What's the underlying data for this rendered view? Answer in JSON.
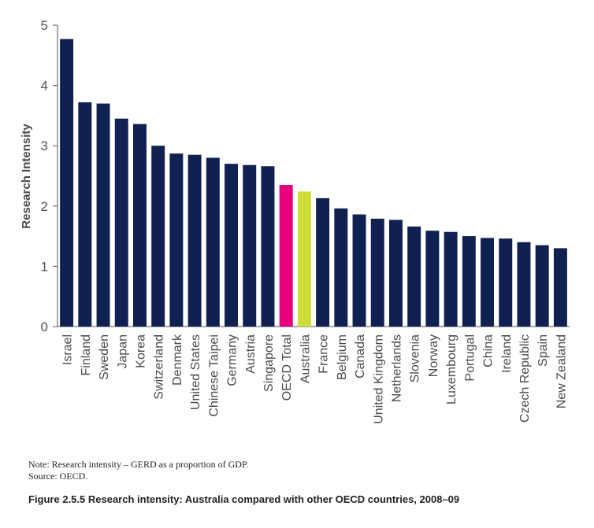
{
  "chart_data": {
    "type": "bar",
    "ylabel": "Research Intensity",
    "ylim": [
      0,
      5
    ],
    "yticks": [
      "0",
      "1",
      "2",
      "3",
      "4",
      "5"
    ],
    "grid": false,
    "legend": "none",
    "categories": [
      "Israel",
      "Finland",
      "Sweden",
      "Japan",
      "Korea",
      "Switzerland",
      "Denmark",
      "United States",
      "Chinese Taipei",
      "Germany",
      "Austria",
      "Singapore",
      "OECD Total",
      "Australia",
      "France",
      "Belgium",
      "Canada",
      "United Kingdom",
      "Netherlands",
      "Slovenia",
      "Norway",
      "Luxembourg",
      "Portugal",
      "China",
      "Ireland",
      "Czech Republic",
      "Spain",
      "New Zealand"
    ],
    "values": [
      4.77,
      3.72,
      3.7,
      3.45,
      3.36,
      3.0,
      2.87,
      2.85,
      2.8,
      2.7,
      2.68,
      2.66,
      2.35,
      2.24,
      2.13,
      1.96,
      1.86,
      1.79,
      1.77,
      1.66,
      1.59,
      1.57,
      1.5,
      1.47,
      1.46,
      1.4,
      1.35,
      1.3
    ],
    "colors": {
      "default": "#0f2051",
      "OECD Total": "#e6007e",
      "Australia": "#cfdd3a"
    }
  },
  "notes": {
    "line1": "Note: Research intensity – GERD as a proportion of GDP.",
    "line2": "Source: OECD."
  },
  "caption": "Figure 2.5.5  Research intensity: Australia compared with other OECD countries, 2008–09"
}
